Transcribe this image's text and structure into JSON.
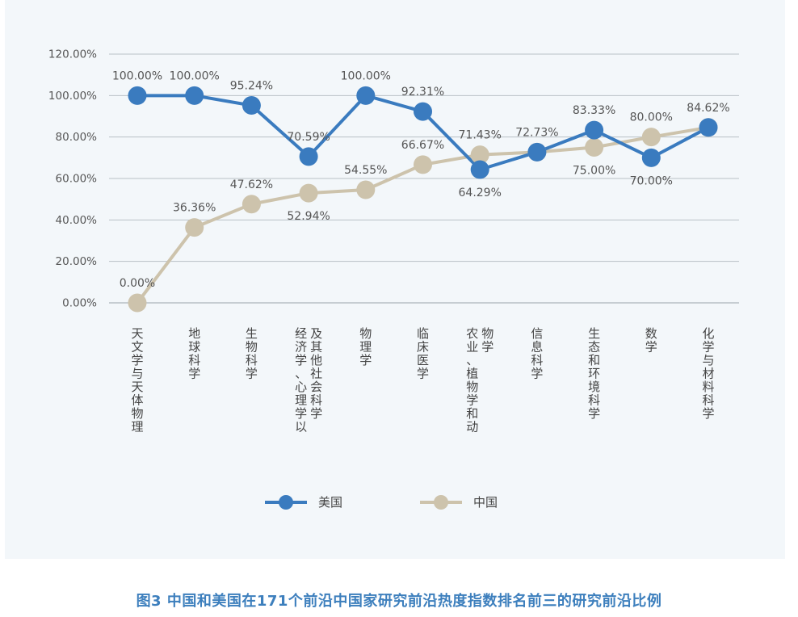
{
  "caption": "图3  中国和美国在171个前沿中国家研究前沿热度指数排名前三的研究前沿比例",
  "chart_data": {
    "type": "line",
    "categories": [
      "天文学与天体物理",
      "地球科学",
      "生物科学",
      "经济学、心理学以及其他社会科学",
      "物理学",
      "临床医学",
      "农业、植物学和动物学",
      "信息科学",
      "生态和环境科学",
      "数学",
      "化学与材料科学"
    ],
    "series": [
      {
        "name": "美国",
        "color": "#3a7bbf",
        "values": [
          100.0,
          100.0,
          95.24,
          70.59,
          100.0,
          92.31,
          64.29,
          72.73,
          83.33,
          70.0,
          84.62
        ],
        "labels": [
          "100.00%",
          "100.00%",
          "95.24%",
          "70.59%",
          "100.00%",
          "92.31%",
          "64.29%",
          "",
          "83.33%",
          "70.00%",
          ""
        ]
      },
      {
        "name": "中国",
        "color": "#cdc3ac",
        "values": [
          0.0,
          36.36,
          47.62,
          52.94,
          54.55,
          66.67,
          71.43,
          72.73,
          75.0,
          80.0,
          84.62
        ],
        "labels": [
          "0.00%",
          "36.36%",
          "47.62%",
          "52.94%",
          "54.55%",
          "66.67%",
          "71.43%",
          "72.73%",
          "75.00%",
          "80.00%",
          "84.62%"
        ]
      }
    ],
    "ylim": [
      0,
      120
    ],
    "yticks": [
      "0.00%",
      "20.00%",
      "40.00%",
      "60.00%",
      "80.00%",
      "100.00%",
      "120.00%"
    ],
    "grid": true,
    "legend": "bottom"
  }
}
